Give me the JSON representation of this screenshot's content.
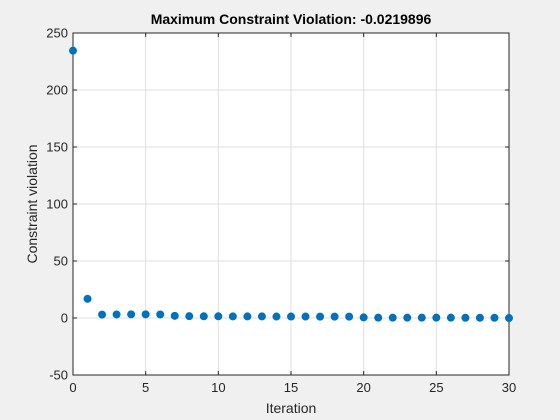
{
  "figure": {
    "background": "#f0f0f0",
    "axes_background": "#ffffff",
    "marker_color": "#0072bd"
  },
  "chart_data": {
    "type": "scatter",
    "title": "Maximum Constraint Violation: -0.0219896",
    "xlabel": "Iteration",
    "ylabel": "Constraint violation",
    "xlim": [
      0,
      30
    ],
    "ylim": [
      -50,
      250
    ],
    "xticks": [
      0,
      5,
      10,
      15,
      20,
      25,
      30
    ],
    "yticks": [
      -50,
      0,
      50,
      100,
      150,
      200,
      250
    ],
    "grid": true,
    "marker": "circle",
    "x": [
      0,
      1,
      2,
      3,
      4,
      5,
      6,
      7,
      8,
      9,
      10,
      11,
      12,
      13,
      14,
      15,
      16,
      17,
      18,
      19,
      20,
      21,
      22,
      23,
      24,
      25,
      26,
      27,
      28,
      29,
      30
    ],
    "y": [
      234.5,
      16.8,
      3.0,
      3.1,
      3.2,
      3.2,
      3.1,
      1.9,
      1.6,
      1.5,
      1.5,
      1.4,
      1.4,
      1.4,
      1.3,
      1.3,
      1.3,
      1.2,
      1.2,
      1.2,
      0.5,
      0.3,
      0.3,
      0.3,
      0.3,
      0.3,
      0.3,
      0.2,
      0.2,
      0.2,
      -0.0219896
    ]
  }
}
